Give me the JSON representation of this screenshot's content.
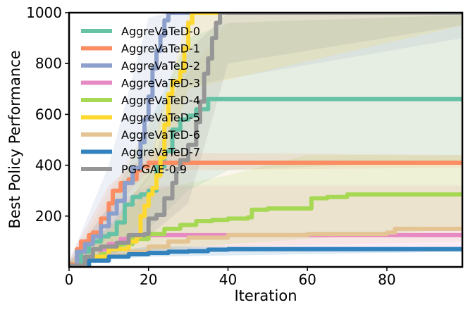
{
  "chart_data": {
    "type": "line",
    "title": "",
    "xlabel": "Iteration",
    "ylabel": "Best Policy Performance",
    "xlim": [
      0,
      99
    ],
    "ylim": [
      0,
      1000
    ],
    "xticks": [
      0,
      20,
      40,
      60,
      80
    ],
    "yticks": [
      200,
      400,
      600,
      800,
      1000
    ],
    "legend_position": "upper-left",
    "series": [
      {
        "name": "AggreVaTeD-0",
        "color": "#66c2a5",
        "points": [
          [
            0,
            5
          ],
          [
            3,
            60
          ],
          [
            5,
            100
          ],
          [
            8,
            120
          ],
          [
            10,
            130
          ],
          [
            12,
            175
          ],
          [
            14,
            245
          ],
          [
            16,
            275
          ],
          [
            18,
            285
          ],
          [
            20,
            300
          ],
          [
            22,
            395
          ],
          [
            24,
            455
          ],
          [
            26,
            540
          ],
          [
            28,
            580
          ],
          [
            30,
            595
          ],
          [
            32,
            620
          ],
          [
            35,
            660
          ],
          [
            99,
            660
          ]
        ],
        "band": [
          [
            0,
            0,
            20
          ],
          [
            10,
            60,
            240
          ],
          [
            20,
            150,
            560
          ],
          [
            30,
            300,
            900
          ],
          [
            40,
            380,
            960
          ],
          [
            99,
            420,
            990
          ]
        ]
      },
      {
        "name": "AggreVaTeD-1",
        "color": "#fc8d62",
        "points": [
          [
            0,
            10
          ],
          [
            2,
            70
          ],
          [
            3,
            100
          ],
          [
            5,
            125
          ],
          [
            6,
            135
          ],
          [
            8,
            190
          ],
          [
            10,
            250
          ],
          [
            11,
            300
          ],
          [
            13,
            330
          ],
          [
            15,
            345
          ],
          [
            17,
            380
          ],
          [
            18,
            395
          ],
          [
            20,
            410
          ],
          [
            99,
            410
          ]
        ],
        "band": [
          [
            0,
            0,
            30
          ],
          [
            10,
            200,
            320
          ],
          [
            20,
            380,
            450
          ],
          [
            99,
            390,
            440
          ]
        ]
      },
      {
        "name": "AggreVaTeD-2",
        "color": "#8da0cb",
        "points": [
          [
            0,
            5
          ],
          [
            2,
            60
          ],
          [
            4,
            90
          ],
          [
            6,
            120
          ],
          [
            8,
            160
          ],
          [
            10,
            210
          ],
          [
            12,
            260
          ],
          [
            14,
            330
          ],
          [
            16,
            390
          ],
          [
            18,
            490
          ],
          [
            19,
            580
          ],
          [
            20,
            670
          ],
          [
            21,
            780
          ],
          [
            22,
            850
          ],
          [
            23,
            910
          ],
          [
            24,
            970
          ],
          [
            25,
            1000
          ],
          [
            99,
            1000
          ]
        ],
        "band": [
          [
            0,
            0,
            20
          ],
          [
            10,
            120,
            400
          ],
          [
            20,
            350,
            980
          ],
          [
            25,
            700,
            1000
          ],
          [
            99,
            900,
            1000
          ]
        ]
      },
      {
        "name": "AggreVaTeD-3",
        "color": "#e78ac3",
        "points": [
          [
            0,
            3
          ],
          [
            5,
            40
          ],
          [
            8,
            70
          ],
          [
            10,
            90
          ],
          [
            13,
            110
          ],
          [
            15,
            120
          ],
          [
            20,
            125
          ],
          [
            30,
            125
          ],
          [
            99,
            125
          ]
        ],
        "band": [
          [
            0,
            0,
            10
          ],
          [
            10,
            40,
            240
          ],
          [
            20,
            60,
            320
          ],
          [
            99,
            60,
            320
          ]
        ]
      },
      {
        "name": "AggreVaTeD-4",
        "color": "#a6d854",
        "points": [
          [
            0,
            3
          ],
          [
            5,
            30
          ],
          [
            8,
            50
          ],
          [
            10,
            70
          ],
          [
            13,
            90
          ],
          [
            16,
            110
          ],
          [
            20,
            130
          ],
          [
            24,
            150
          ],
          [
            28,
            165
          ],
          [
            32,
            180
          ],
          [
            36,
            185
          ],
          [
            40,
            190
          ],
          [
            45,
            195
          ],
          [
            46,
            225
          ],
          [
            50,
            230
          ],
          [
            60,
            230
          ],
          [
            61,
            270
          ],
          [
            65,
            275
          ],
          [
            70,
            285
          ],
          [
            99,
            285
          ]
        ],
        "band": [
          [
            0,
            0,
            10
          ],
          [
            20,
            60,
            300
          ],
          [
            40,
            90,
            360
          ],
          [
            60,
            110,
            440
          ],
          [
            99,
            150,
            440
          ]
        ]
      },
      {
        "name": "AggreVaTeD-5",
        "color": "#ffd92f",
        "points": [
          [
            0,
            5
          ],
          [
            5,
            40
          ],
          [
            10,
            70
          ],
          [
            15,
            100
          ],
          [
            17,
            120
          ],
          [
            18,
            200
          ],
          [
            19,
            240
          ],
          [
            20,
            285
          ],
          [
            21,
            310
          ],
          [
            22,
            360
          ],
          [
            23,
            430
          ],
          [
            24,
            560
          ],
          [
            25,
            680
          ],
          [
            26,
            730
          ],
          [
            28,
            770
          ],
          [
            29,
            860
          ],
          [
            30,
            960
          ],
          [
            31,
            1000
          ],
          [
            99,
            1000
          ]
        ],
        "band": [
          [
            0,
            0,
            20
          ],
          [
            10,
            40,
            120
          ],
          [
            20,
            200,
            400
          ],
          [
            30,
            700,
            1000
          ],
          [
            99,
            950,
            1000
          ]
        ]
      },
      {
        "name": "AggreVaTeD-6",
        "color": "#e5c494",
        "points": [
          [
            0,
            3
          ],
          [
            5,
            25
          ],
          [
            10,
            45
          ],
          [
            15,
            60
          ],
          [
            20,
            80
          ],
          [
            25,
            100
          ],
          [
            30,
            115
          ],
          [
            40,
            125
          ],
          [
            50,
            125
          ],
          [
            60,
            130
          ],
          [
            70,
            130
          ],
          [
            80,
            135
          ],
          [
            82,
            150
          ],
          [
            99,
            150
          ]
        ],
        "band": [
          [
            0,
            0,
            10
          ],
          [
            20,
            60,
            560
          ],
          [
            40,
            80,
            960
          ],
          [
            99,
            100,
            990
          ]
        ]
      },
      {
        "name": "AggreVaTeD-7",
        "color": "#3182bd",
        "points": [
          [
            0,
            3
          ],
          [
            5,
            25
          ],
          [
            10,
            40
          ],
          [
            15,
            50
          ],
          [
            20,
            55
          ],
          [
            25,
            60
          ],
          [
            30,
            62
          ],
          [
            35,
            68
          ],
          [
            40,
            70
          ],
          [
            99,
            70
          ]
        ],
        "band": [
          [
            0,
            0,
            10
          ],
          [
            10,
            30,
            60
          ],
          [
            20,
            40,
            80
          ],
          [
            99,
            60,
            80
          ]
        ]
      },
      {
        "name": "PG-GAE-0.9",
        "color": "#969696",
        "points": [
          [
            0,
            5
          ],
          [
            4,
            40
          ],
          [
            6,
            70
          ],
          [
            8,
            80
          ],
          [
            12,
            95
          ],
          [
            15,
            125
          ],
          [
            19,
            130
          ],
          [
            20,
            190
          ],
          [
            22,
            205
          ],
          [
            24,
            270
          ],
          [
            26,
            330
          ],
          [
            27,
            385
          ],
          [
            28,
            420
          ],
          [
            30,
            480
          ],
          [
            32,
            570
          ],
          [
            33,
            650
          ],
          [
            34,
            760
          ],
          [
            35,
            820
          ],
          [
            36,
            900
          ],
          [
            37,
            960
          ],
          [
            38,
            1000
          ],
          [
            99,
            1000
          ]
        ],
        "band": [
          [
            0,
            0,
            20
          ],
          [
            10,
            40,
            160
          ],
          [
            20,
            120,
            360
          ],
          [
            30,
            250,
            850
          ],
          [
            40,
            800,
            1000
          ],
          [
            99,
            950,
            1000
          ]
        ]
      }
    ]
  }
}
